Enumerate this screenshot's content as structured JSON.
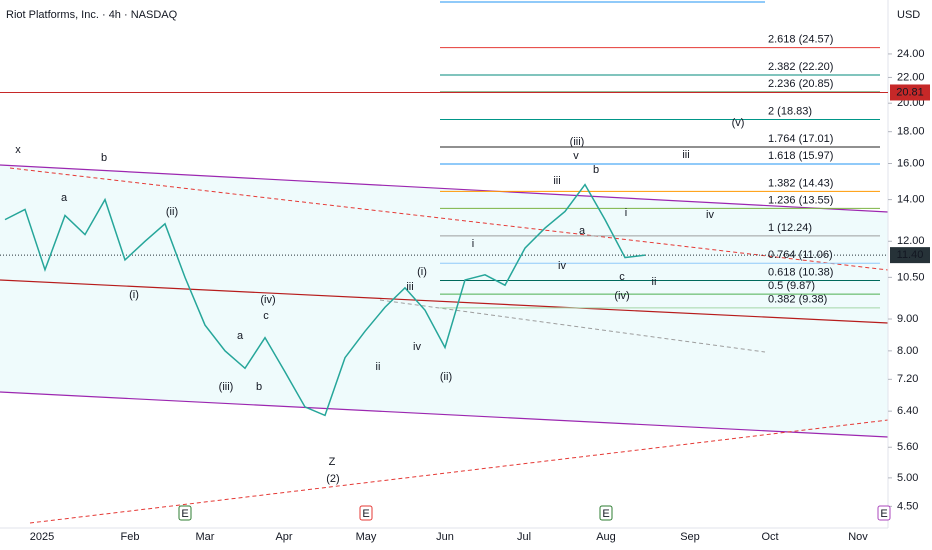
{
  "chart_data": {
    "type": "line",
    "title": "Riot Platforms, Inc. · 4h · NASDAQ",
    "currency": "USD",
    "log_scale": true,
    "ylim": [
      4.2,
      29.3
    ],
    "yticks": [
      {
        "value": 24,
        "label": "24.00"
      },
      {
        "value": 22,
        "label": "22.00"
      },
      {
        "value": 20,
        "label": "20.00"
      },
      {
        "value": 18,
        "label": "18.00"
      },
      {
        "value": 16,
        "label": "16.00"
      },
      {
        "value": 14,
        "label": "14.00"
      },
      {
        "value": 12,
        "label": "12.00"
      },
      {
        "value": 10.5,
        "label": "10.50"
      },
      {
        "value": 9,
        "label": "9.00"
      },
      {
        "value": 8,
        "label": "8.00"
      },
      {
        "value": 7.2,
        "label": "7.20"
      },
      {
        "value": 6.4,
        "label": "6.40"
      },
      {
        "value": 5.6,
        "label": "5.60"
      },
      {
        "value": 5,
        "label": "5.00"
      },
      {
        "value": 4.5,
        "label": "4.50"
      }
    ],
    "xticklabels": [
      "2025",
      "Feb",
      "Mar",
      "Apr",
      "May",
      "Jun",
      "Jul",
      "Aug",
      "Sep",
      "Oct",
      "Nov"
    ],
    "categories": [
      null,
      null,
      null,
      null,
      null,
      null,
      null,
      null,
      null,
      null,
      null,
      null,
      null,
      null,
      null,
      null,
      null,
      null,
      null,
      null,
      null,
      null,
      null,
      null,
      null,
      null,
      null,
      null,
      null,
      null,
      null,
      null,
      null
    ],
    "series": [
      {
        "name": "Price",
        "color": "#26a69a",
        "values": [
          13,
          13.5,
          10.8,
          13.2,
          12.3,
          14,
          11.2,
          12,
          12.8,
          10.5,
          8.8,
          8,
          7.5,
          8.4,
          7.4,
          6.5,
          6.3,
          7.8,
          8.6,
          9.4,
          10.1,
          9.3,
          8.1,
          10.4,
          10.6,
          10.2,
          11.7,
          12.6,
          13.4,
          14.8,
          13,
          11.3,
          11.4
        ]
      }
    ],
    "fib_levels": [
      {
        "label": "2.618 (24.57)",
        "value": 24.57,
        "color": "#e53935"
      },
      {
        "label": "2.382 (22.20)",
        "value": 22.2,
        "color": "#00897b"
      },
      {
        "label": "2.236 (20.85)",
        "value": 20.85,
        "color": "#2e7d32"
      },
      {
        "label": "2 (18.83)",
        "value": 18.83,
        "color": "#009688"
      },
      {
        "label": "1.764 (17.01)",
        "value": 17.01,
        "color": "#222222"
      },
      {
        "label": "1.618 (15.97)",
        "value": 15.97,
        "color": "#2196f3"
      },
      {
        "label": "1.382 (14.43)",
        "value": 14.43,
        "color": "#ff9800"
      },
      {
        "label": "1.236 (13.55)",
        "value": 13.55,
        "color": "#7cb342"
      },
      {
        "label": "1 (12.24)",
        "value": 12.24,
        "color": "#9e9e9e"
      },
      {
        "label": "0.764 (11.06)",
        "value": 11.06,
        "color": "#90caf9"
      },
      {
        "label": "0.618 (10.38)",
        "value": 10.38,
        "color": "#00695c"
      },
      {
        "label": "0.5 (9.87)",
        "value": 9.87,
        "color": "#4caf50"
      },
      {
        "label": "0.382 (9.38)",
        "value": 9.38,
        "color": "#a5d6a7"
      }
    ],
    "price_labels": [
      {
        "value": 20.81,
        "label": "20.81",
        "color": "#c62828"
      },
      {
        "value": 11.4,
        "label": "11.40",
        "color": "#263238"
      }
    ],
    "annotations": [
      "x",
      "b",
      "a",
      "(ii)",
      "(i)",
      "(iv)",
      "(iii)",
      "c",
      "a",
      "b",
      "Z",
      "(2)",
      "(i)",
      "(ii)",
      "iii",
      "iv",
      "(iii)",
      "v",
      "b",
      "iii",
      "i",
      "iv",
      "ii",
      "(iv)",
      "c",
      "iii",
      "iv",
      "(v)",
      "i",
      "ii",
      "a"
    ],
    "events": [
      "E",
      "E",
      "E",
      "E"
    ]
  }
}
